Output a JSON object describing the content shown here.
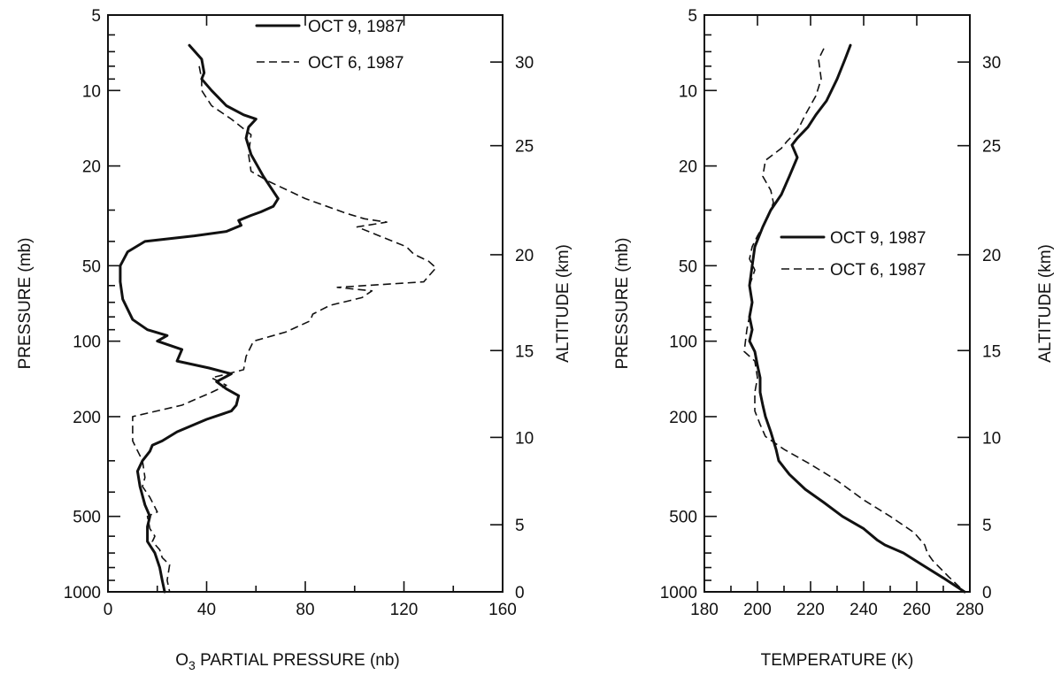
{
  "chart_data": [
    {
      "type": "line",
      "xlabel_prefix": "O",
      "xlabel_sub": "3",
      "xlabel_rest": " PARTIAL PRESSURE (nb)",
      "ylabel": "PRESSURE (mb)",
      "y2label": "ALTITUDE (km)",
      "xlim": [
        0,
        160
      ],
      "ylim": [
        1000,
        5
      ],
      "y_scale": "log",
      "xticks": [
        "0",
        "40",
        "80",
        "120",
        "160"
      ],
      "yticks": [
        "5",
        "10",
        "20",
        "50",
        "100",
        "200",
        "500",
        "1000"
      ],
      "y2ticks": [
        "30",
        "25",
        "20",
        "15",
        "10",
        "5",
        "0"
      ],
      "legend_position": "top-right",
      "series": [
        {
          "name": "OCT 9, 1987",
          "style": "solid",
          "x": [
            33,
            38,
            39,
            38,
            42,
            48,
            55,
            60,
            57,
            56,
            58,
            63,
            69,
            67,
            62,
            58,
            53,
            54,
            48,
            35,
            15,
            8,
            5,
            5,
            6,
            10,
            16,
            24,
            20,
            30,
            28,
            41,
            50,
            44,
            48,
            53,
            52,
            50,
            40,
            28,
            22,
            18,
            17,
            14,
            12,
            13,
            15,
            17,
            16,
            16,
            19,
            21,
            22,
            23
          ],
          "y": [
            6.6,
            7.5,
            8.5,
            9.0,
            10.0,
            11.5,
            12.5,
            13.0,
            14.0,
            15.5,
            18.0,
            22.0,
            27.0,
            29.0,
            30.5,
            31.5,
            33.0,
            34.5,
            36.5,
            38.0,
            40.0,
            44.0,
            50.0,
            58.0,
            68.0,
            82.0,
            90.0,
            95.0,
            100.0,
            108.0,
            120.0,
            128.0,
            135.0,
            145.0,
            155.0,
            165.0,
            180.0,
            190.0,
            205.0,
            230.0,
            250.0,
            260.0,
            275.0,
            300.0,
            330.0,
            380.0,
            450.0,
            500.0,
            550.0,
            630.0,
            700.0,
            800.0,
            900.0,
            1000.0
          ]
        },
        {
          "name": "OCT 6, 1987",
          "style": "dashed",
          "x": [
            37,
            38,
            38,
            42,
            50,
            58,
            57,
            58,
            65,
            80,
            97,
            104,
            113,
            101,
            110,
            121,
            124,
            130,
            133,
            130,
            128,
            93,
            107,
            103,
            90,
            83,
            82,
            72,
            59,
            56,
            55,
            42,
            48,
            42,
            30,
            10,
            10,
            14,
            15,
            14,
            17,
            20,
            16,
            17,
            19,
            18,
            21,
            22,
            25,
            24,
            25
          ],
          "y": [
            8.0,
            9.0,
            10.0,
            11.5,
            13.0,
            15.0,
            18.0,
            21.0,
            23.0,
            27.0,
            31.0,
            32.5,
            33.5,
            35.0,
            38.0,
            42.0,
            45.0,
            48.0,
            51.0,
            55.0,
            58.0,
            61.0,
            63.0,
            67.0,
            72.0,
            78.0,
            83.0,
            92.0,
            100.0,
            115.0,
            130.0,
            140.0,
            150.0,
            160.0,
            180.0,
            200.0,
            250.0,
            300.0,
            350.0,
            380.0,
            420.0,
            480.0,
            500.0,
            560.0,
            600.0,
            630.0,
            680.0,
            730.0,
            780.0,
            900.0,
            1000.0
          ]
        }
      ]
    },
    {
      "type": "line",
      "xlabel": "TEMPERATURE (K)",
      "ylabel": "PRESSURE (mb)",
      "y2label": "ALTITUDE (km)",
      "xlim": [
        180,
        280
      ],
      "ylim": [
        1000,
        5
      ],
      "y_scale": "log",
      "xticks": [
        "180",
        "200",
        "220",
        "240",
        "260",
        "280"
      ],
      "yticks": [
        "5",
        "10",
        "20",
        "50",
        "100",
        "200",
        "500",
        "1000"
      ],
      "y2ticks": [
        "30",
        "25",
        "20",
        "15",
        "10",
        "5",
        "0"
      ],
      "legend_position": "center-right",
      "series": [
        {
          "name": "OCT 9, 1987",
          "style": "solid",
          "x": [
            235,
            233,
            230,
            226,
            222,
            219,
            215,
            213,
            215,
            212,
            209,
            205,
            202,
            199,
            198,
            197,
            198,
            197,
            198,
            197,
            199,
            200,
            201,
            201,
            202,
            203,
            205,
            207,
            208,
            212,
            218,
            225,
            232,
            240,
            245,
            248,
            255,
            262,
            270,
            278
          ],
          "y": [
            6.6,
            7.5,
            9.0,
            11.0,
            12.5,
            14.0,
            15.5,
            16.5,
            18.5,
            22.0,
            26.0,
            30.0,
            35.0,
            42.0,
            50.0,
            60.0,
            70.0,
            80.0,
            90.0,
            100.0,
            110.0,
            125.0,
            140.0,
            160.0,
            180.0,
            200.0,
            230.0,
            270.0,
            300.0,
            340.0,
            390.0,
            440.0,
            500.0,
            560.0,
            620.0,
            650.0,
            700.0,
            780.0,
            880.0,
            1000.0
          ]
        },
        {
          "name": "OCT 6, 1987",
          "style": "dashed",
          "x": [
            225,
            223,
            224,
            222,
            218,
            215,
            211,
            209,
            203,
            202,
            205,
            206,
            204,
            200,
            198,
            197,
            199,
            197,
            198,
            196,
            195,
            199,
            200,
            199,
            199,
            201,
            203,
            210,
            220,
            230,
            240,
            250,
            259,
            263,
            264,
            266,
            272,
            278
          ],
          "y": [
            6.8,
            7.5,
            9.0,
            10.5,
            12.5,
            14.5,
            16.0,
            17.0,
            19.0,
            22.0,
            25.0,
            28.0,
            32.0,
            38.0,
            42.0,
            47.0,
            52.0,
            60.0,
            70.0,
            90.0,
            110.0,
            120.0,
            140.0,
            160.0,
            190.0,
            215.0,
            240.0,
            270.0,
            310.0,
            360.0,
            430.0,
            500.0,
            580.0,
            650.0,
            700.0,
            750.0,
            870.0,
            1000.0
          ]
        }
      ]
    }
  ]
}
